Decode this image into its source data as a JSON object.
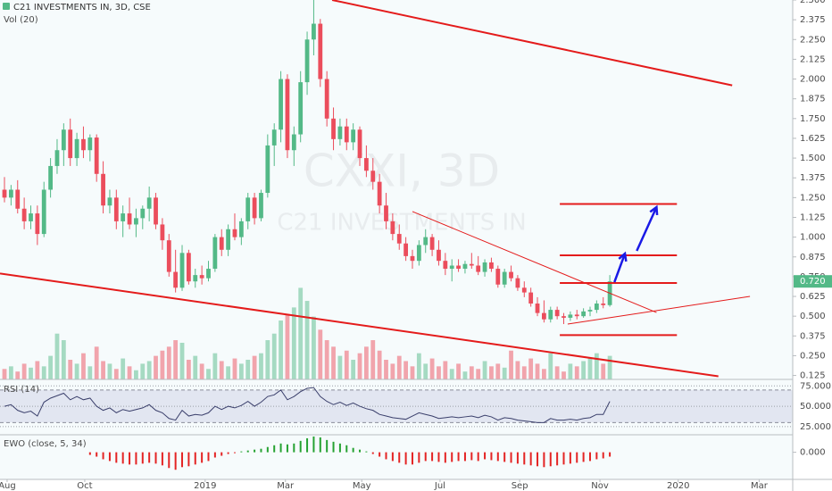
{
  "chart_data": {
    "type": "candlestick",
    "title": "C21 INVESTMENTS IN, 3D, CSE",
    "watermark": "CXXI, 3D",
    "watermark_name": "C21 INVESTMENTS IN",
    "up_color": "#53b987",
    "down_color": "#eb4d5c",
    "ylim": [
      0.1,
      2.5
    ],
    "yticks": [
      {
        "value": 2.5,
        "label": "2.500"
      },
      {
        "value": 2.375,
        "label": "2.375"
      },
      {
        "value": 2.25,
        "label": "2.250"
      },
      {
        "value": 2.125,
        "label": "2.125"
      },
      {
        "value": 2.0,
        "label": "2.000"
      },
      {
        "value": 1.875,
        "label": "1.875"
      },
      {
        "value": 1.75,
        "label": "1.750"
      },
      {
        "value": 1.625,
        "label": "1.625"
      },
      {
        "value": 1.5,
        "label": "1.500"
      },
      {
        "value": 1.375,
        "label": "1.375"
      },
      {
        "value": 1.25,
        "label": "1.250"
      },
      {
        "value": 1.125,
        "label": "1.125"
      },
      {
        "value": 1.0,
        "label": "1.000"
      },
      {
        "value": 0.875,
        "label": "0.875"
      },
      {
        "value": 0.75,
        "label": "0.750"
      },
      {
        "value": 0.625,
        "label": "0.625"
      },
      {
        "value": 0.5,
        "label": "0.500"
      },
      {
        "value": 0.375,
        "label": "0.375"
      },
      {
        "value": 0.25,
        "label": "0.250"
      },
      {
        "value": 0.125,
        "label": "0.125"
      }
    ],
    "price_badge": {
      "value": 0.72,
      "label": "0.720"
    },
    "xlim": [
      -0.68,
      119.8
    ],
    "xticks": [
      {
        "value": 0.4,
        "label": "Aug"
      },
      {
        "value": 12.2,
        "label": "Oct"
      },
      {
        "value": 30.5,
        "label": "2019"
      },
      {
        "value": 42.7,
        "label": "Mar"
      },
      {
        "value": 54.3,
        "label": "May"
      },
      {
        "value": 66.2,
        "label": "Jul"
      },
      {
        "value": 78.3,
        "label": "Sep"
      },
      {
        "value": 90.5,
        "label": "Nov"
      },
      {
        "value": 102.4,
        "label": "2020"
      },
      {
        "value": 114.7,
        "label": "Mar"
      }
    ],
    "candles": [
      [
        1.3,
        1.38,
        1.22,
        1.25
      ],
      [
        1.25,
        1.33,
        1.2,
        1.3
      ],
      [
        1.3,
        1.36,
        1.15,
        1.18
      ],
      [
        1.18,
        1.25,
        1.05,
        1.1
      ],
      [
        1.1,
        1.2,
        1.05,
        1.15
      ],
      [
        1.15,
        1.2,
        0.95,
        1.02
      ],
      [
        1.02,
        1.35,
        1.0,
        1.3
      ],
      [
        1.3,
        1.5,
        1.25,
        1.45
      ],
      [
        1.45,
        1.62,
        1.4,
        1.55
      ],
      [
        1.55,
        1.72,
        1.45,
        1.68
      ],
      [
        1.68,
        1.75,
        1.45,
        1.5
      ],
      [
        1.5,
        1.66,
        1.45,
        1.62
      ],
      [
        1.62,
        1.7,
        1.5,
        1.55
      ],
      [
        1.55,
        1.65,
        1.48,
        1.63
      ],
      [
        1.63,
        1.65,
        1.35,
        1.4
      ],
      [
        1.4,
        1.48,
        1.15,
        1.2
      ],
      [
        1.2,
        1.3,
        1.15,
        1.25
      ],
      [
        1.25,
        1.3,
        1.05,
        1.1
      ],
      [
        1.1,
        1.2,
        1.0,
        1.15
      ],
      [
        1.15,
        1.25,
        1.05,
        1.08
      ],
      [
        1.08,
        1.18,
        1.0,
        1.12
      ],
      [
        1.12,
        1.2,
        1.05,
        1.18
      ],
      [
        1.18,
        1.32,
        1.1,
        1.25
      ],
      [
        1.25,
        1.28,
        1.05,
        1.08
      ],
      [
        1.08,
        1.12,
        0.92,
        0.98
      ],
      [
        0.98,
        1.02,
        0.75,
        0.78
      ],
      [
        0.78,
        0.92,
        0.65,
        0.68
      ],
      [
        0.68,
        0.95,
        0.66,
        0.9
      ],
      [
        0.9,
        0.92,
        0.7,
        0.72
      ],
      [
        0.72,
        0.8,
        0.68,
        0.76
      ],
      [
        0.76,
        0.82,
        0.7,
        0.74
      ],
      [
        0.74,
        0.85,
        0.72,
        0.8
      ],
      [
        0.8,
        1.02,
        0.78,
        1.0
      ],
      [
        1.0,
        1.05,
        0.88,
        0.92
      ],
      [
        0.92,
        1.08,
        0.88,
        1.05
      ],
      [
        1.05,
        1.15,
        0.98,
        1.0
      ],
      [
        1.0,
        1.12,
        0.95,
        1.1
      ],
      [
        1.1,
        1.28,
        1.05,
        1.25
      ],
      [
        1.25,
        1.28,
        1.08,
        1.12
      ],
      [
        1.12,
        1.3,
        1.1,
        1.28
      ],
      [
        1.28,
        1.65,
        1.25,
        1.58
      ],
      [
        1.58,
        1.72,
        1.45,
        1.68
      ],
      [
        1.68,
        2.05,
        1.6,
        2.0
      ],
      [
        2.0,
        2.03,
        1.5,
        1.55
      ],
      [
        1.55,
        1.7,
        1.45,
        1.65
      ],
      [
        1.65,
        2.05,
        1.6,
        1.98
      ],
      [
        1.98,
        2.3,
        1.9,
        2.25
      ],
      [
        2.25,
        2.5,
        2.15,
        2.35
      ],
      [
        2.35,
        2.38,
        1.95,
        2.0
      ],
      [
        2.0,
        2.05,
        1.7,
        1.75
      ],
      [
        1.75,
        1.82,
        1.55,
        1.62
      ],
      [
        1.62,
        1.75,
        1.58,
        1.7
      ],
      [
        1.7,
        1.75,
        1.55,
        1.6
      ],
      [
        1.6,
        1.72,
        1.55,
        1.68
      ],
      [
        1.68,
        1.7,
        1.45,
        1.5
      ],
      [
        1.5,
        1.58,
        1.38,
        1.42
      ],
      [
        1.42,
        1.5,
        1.3,
        1.35
      ],
      [
        1.35,
        1.4,
        1.15,
        1.2
      ],
      [
        1.2,
        1.28,
        1.05,
        1.1
      ],
      [
        1.1,
        1.15,
        0.98,
        1.02
      ],
      [
        1.02,
        1.08,
        0.92,
        0.96
      ],
      [
        0.96,
        1.0,
        0.85,
        0.88
      ],
      [
        0.88,
        0.92,
        0.8,
        0.85
      ],
      [
        0.85,
        0.98,
        0.82,
        0.95
      ],
      [
        0.95,
        1.05,
        0.9,
        1.0
      ],
      [
        1.0,
        1.02,
        0.88,
        0.92
      ],
      [
        0.92,
        0.98,
        0.82,
        0.85
      ],
      [
        0.85,
        0.9,
        0.76,
        0.8
      ],
      [
        0.8,
        0.86,
        0.72,
        0.82
      ],
      [
        0.82,
        0.86,
        0.78,
        0.8
      ],
      [
        0.8,
        0.85,
        0.77,
        0.83
      ],
      [
        0.83,
        0.9,
        0.8,
        0.82
      ],
      [
        0.82,
        0.88,
        0.76,
        0.78
      ],
      [
        0.78,
        0.86,
        0.75,
        0.84
      ],
      [
        0.84,
        0.87,
        0.78,
        0.8
      ],
      [
        0.8,
        0.82,
        0.68,
        0.7
      ],
      [
        0.7,
        0.8,
        0.68,
        0.78
      ],
      [
        0.78,
        0.82,
        0.72,
        0.74
      ],
      [
        0.74,
        0.76,
        0.66,
        0.68
      ],
      [
        0.68,
        0.72,
        0.62,
        0.65
      ],
      [
        0.65,
        0.68,
        0.56,
        0.58
      ],
      [
        0.58,
        0.62,
        0.5,
        0.52
      ],
      [
        0.52,
        0.6,
        0.46,
        0.48
      ],
      [
        0.48,
        0.56,
        0.46,
        0.54
      ],
      [
        0.54,
        0.56,
        0.48,
        0.5
      ],
      [
        0.5,
        0.52,
        0.45,
        0.49
      ],
      [
        0.49,
        0.53,
        0.47,
        0.51
      ],
      [
        0.51,
        0.54,
        0.48,
        0.5
      ],
      [
        0.5,
        0.55,
        0.49,
        0.53
      ],
      [
        0.53,
        0.56,
        0.5,
        0.54
      ],
      [
        0.54,
        0.6,
        0.52,
        0.58
      ],
      [
        0.58,
        0.62,
        0.55,
        0.57
      ],
      [
        0.57,
        0.76,
        0.56,
        0.72
      ]
    ],
    "volume": {
      "name": "Vol (20)",
      "ylim": [
        0,
        290
      ],
      "values": [
        8,
        10,
        6,
        12,
        9,
        14,
        10,
        18,
        35,
        30,
        15,
        12,
        20,
        10,
        25,
        14,
        12,
        8,
        16,
        10,
        7,
        12,
        14,
        18,
        22,
        25,
        30,
        28,
        15,
        18,
        12,
        8,
        20,
        14,
        10,
        16,
        12,
        15,
        18,
        20,
        30,
        35,
        45,
        50,
        55,
        70,
        60,
        48,
        38,
        30,
        25,
        18,
        22,
        15,
        20,
        25,
        30,
        22,
        15,
        12,
        18,
        14,
        10,
        20,
        12,
        16,
        10,
        14,
        8,
        12,
        6,
        10,
        8,
        14,
        10,
        12,
        9,
        22,
        14,
        10,
        16,
        12,
        8,
        20,
        10,
        6,
        12,
        10,
        14,
        16,
        20,
        12,
        18
      ]
    },
    "rsi": {
      "name": "RSI (14)",
      "color": "#3a3f6b",
      "ylim": [
        15,
        83
      ],
      "band": [
        30,
        70
      ],
      "yticks": [
        {
          "value": 75,
          "label": "75.000"
        },
        {
          "value": 50,
          "label": "50.000"
        },
        {
          "value": 25,
          "label": "25.000"
        }
      ],
      "values": [
        50,
        52,
        45,
        42,
        44,
        38,
        55,
        60,
        63,
        66,
        58,
        62,
        58,
        60,
        50,
        45,
        48,
        42,
        46,
        44,
        46,
        48,
        52,
        45,
        42,
        35,
        33,
        45,
        38,
        40,
        39,
        42,
        50,
        46,
        50,
        48,
        51,
        56,
        50,
        55,
        62,
        64,
        70,
        58,
        62,
        68,
        72,
        73,
        62,
        56,
        52,
        55,
        51,
        54,
        50,
        47,
        45,
        40,
        38,
        36,
        35,
        34,
        38,
        42,
        40,
        38,
        35,
        36,
        37,
        36,
        37,
        38,
        36,
        39,
        37,
        33,
        36,
        35,
        33,
        32,
        31,
        30,
        30,
        35,
        33,
        33,
        34,
        33,
        35,
        36,
        40,
        40,
        56
      ]
    },
    "ewo": {
      "name": "EWO (close, 5, 34)",
      "ylim": [
        -0.31,
        0.2
      ],
      "yticks": [
        {
          "value": 0,
          "label": "0.000"
        }
      ],
      "values": [
        null,
        null,
        null,
        null,
        null,
        null,
        null,
        null,
        null,
        null,
        null,
        null,
        null,
        -0.03,
        -0.05,
        -0.08,
        -0.1,
        -0.12,
        -0.13,
        -0.14,
        -0.14,
        -0.13,
        -0.12,
        -0.13,
        -0.15,
        -0.18,
        -0.2,
        -0.17,
        -0.16,
        -0.14,
        -0.12,
        -0.1,
        -0.06,
        -0.04,
        -0.02,
        -0.01,
        0.01,
        0.02,
        0.03,
        0.04,
        0.06,
        0.08,
        0.1,
        0.09,
        0.1,
        0.13,
        0.16,
        0.18,
        0.17,
        0.14,
        0.12,
        0.1,
        0.08,
        0.05,
        0.03,
        0.01,
        -0.02,
        -0.05,
        -0.08,
        -0.1,
        -0.12,
        -0.14,
        -0.14,
        -0.12,
        -0.1,
        -0.1,
        -0.11,
        -0.12,
        -0.11,
        -0.1,
        -0.1,
        -0.09,
        -0.1,
        -0.08,
        -0.09,
        -0.1,
        -0.11,
        -0.12,
        -0.13,
        -0.14,
        -0.15,
        -0.16,
        -0.17,
        -0.16,
        -0.15,
        -0.14,
        -0.13,
        -0.12,
        -0.11,
        -0.1,
        -0.08,
        -0.07,
        -0.05
      ]
    },
    "drawings": [
      {
        "color": "#e41b1b",
        "points": [
          [
            49.8,
            2.5
          ],
          [
            110.6,
            1.96
          ]
        ]
      },
      {
        "color": "#e41b1b",
        "points": [
          [
            -0.68,
            0.77
          ],
          [
            108.5,
            0.12
          ]
        ]
      },
      {
        "color": "#e41b1b",
        "points": [
          [
            62.0,
            1.162
          ],
          [
            99.1,
            0.523
          ]
        ]
      },
      {
        "color": "#e41b1b",
        "points": [
          [
            85.6,
            0.45
          ],
          [
            113.3,
            0.625
          ]
        ]
      },
      {
        "color": "#e41b1b",
        "points": [
          [
            84.4,
            1.21
          ],
          [
            102.2,
            1.21
          ]
        ]
      },
      {
        "color": "#e41b1b",
        "points": [
          [
            84.4,
            0.885
          ],
          [
            102.2,
            0.885
          ]
        ]
      },
      {
        "color": "#e41b1b",
        "points": [
          [
            84.4,
            0.71
          ],
          [
            102.2,
            0.71
          ]
        ]
      },
      {
        "color": "#e41b1b",
        "points": [
          [
            84.4,
            0.38
          ],
          [
            102.2,
            0.38
          ]
        ]
      }
    ],
    "arrows": [
      {
        "color": "#1a1ae6",
        "points": [
          [
            92.7,
            0.715
          ],
          [
            94.3,
            0.896
          ]
        ]
      },
      {
        "color": "#1a1ae6",
        "points": [
          [
            96.1,
            0.913
          ],
          [
            99.1,
            1.19
          ]
        ]
      }
    ]
  }
}
